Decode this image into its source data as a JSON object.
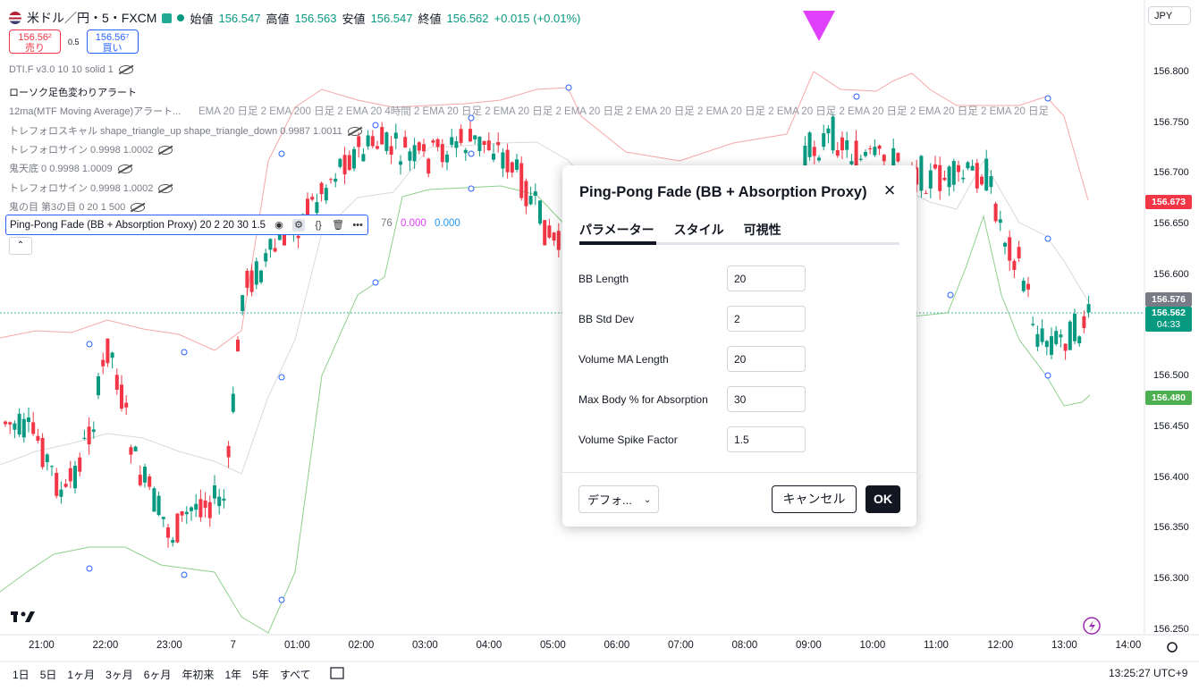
{
  "header": {
    "symbol": "米ドル／円・5・FXCM",
    "open_label": "始値",
    "open": "156.547",
    "high_label": "高値",
    "high": "156.563",
    "low_label": "安値",
    "low": "156.547",
    "close_label": "終値",
    "close": "156.562",
    "change": "+0.015 (+0.01%)"
  },
  "trade": {
    "sell_price": "156.56²",
    "sell_label": "売り",
    "spread": "0.5",
    "buy_price": "156.56⁷",
    "buy_label": "買い"
  },
  "indicators": [
    "DTI.F v3.0 10 10 solid 1",
    "ローソク足色変わりアラート",
    "12ma(MTF Moving Average)アラート...",
    "トレフォロスキャル shape_triangle_up shape_triangle_down 0.9987 1.0011",
    "トレフォロサイン 0.9998 1.0002",
    "鬼天底 0 0.9998 1.0009",
    "トレフォロサイン 0.9998 1.0002",
    "鬼の目 第3の目 0 20 1 500"
  ],
  "ema_row": "EMA 20 日足 2 EMA 200 日足 2 EMA 20 4時間 2 EMA 20 日足 2 EMA 20 日足 2 EMA 20 日足 2 EMA 20 日足 2 EMA 20 日足 2 EMA 20 日足 2 EMA 20 日足 2 EMA 20 日足 2 EMA 20 日足 2 EMA 20 日足 2 EMA 20 日足",
  "selected_indicator": "Ping-Pong Fade (BB + Absorption Proxy) 20 2 20 30 1.5",
  "pp_values": {
    "v1": "76",
    "v2": "0.000",
    "v3": "0.000"
  },
  "currency": "JPY",
  "price_scale": [
    "156.800",
    "156.750",
    "156.700",
    "156.650",
    "156.600",
    "156.550",
    "156.500",
    "156.450",
    "156.400",
    "156.350",
    "156.300",
    "156.250"
  ],
  "price_tags": {
    "upper": "156.673",
    "middle": "156.576",
    "current": "156.562",
    "countdown": "04:33",
    "lower": "156.480"
  },
  "colors": {
    "up": "#089981",
    "down": "#f23645",
    "upper_band": "#f7a8a8",
    "lower_band": "#8ed08e",
    "mid_band": "#d9d9d9",
    "marker": "#e040fb",
    "accent": "#2962ff"
  },
  "time_axis": [
    "21:00",
    "22:00",
    "23:00",
    "7",
    "01:00",
    "02:00",
    "03:00",
    "04:00",
    "05:00",
    "06:00",
    "07:00",
    "08:00",
    "09:00",
    "10:00",
    "11:00",
    "12:00",
    "13:00",
    "14:00"
  ],
  "ranges": [
    "1日",
    "5日",
    "1ヶ月",
    "3ヶ月",
    "6ヶ月",
    "年初来",
    "1年",
    "5年",
    "すべて"
  ],
  "clock": "13:25:27 UTC+9",
  "dialog": {
    "title": "Ping-Pong Fade (BB + Absorption Proxy)",
    "tabs": [
      "パラメーター",
      "スタイル",
      "可視性"
    ],
    "fields": [
      {
        "label": "BB Length",
        "value": "20"
      },
      {
        "label": "BB Std Dev",
        "value": "2"
      },
      {
        "label": "Volume MA Length",
        "value": "20"
      },
      {
        "label": "Max Body % for Absorption",
        "value": "30"
      },
      {
        "label": "Volume Spike Factor",
        "value": "1.5"
      }
    ],
    "defaults_label": "デフォ...",
    "cancel_label": "キャンセル",
    "ok_label": "OK"
  }
}
